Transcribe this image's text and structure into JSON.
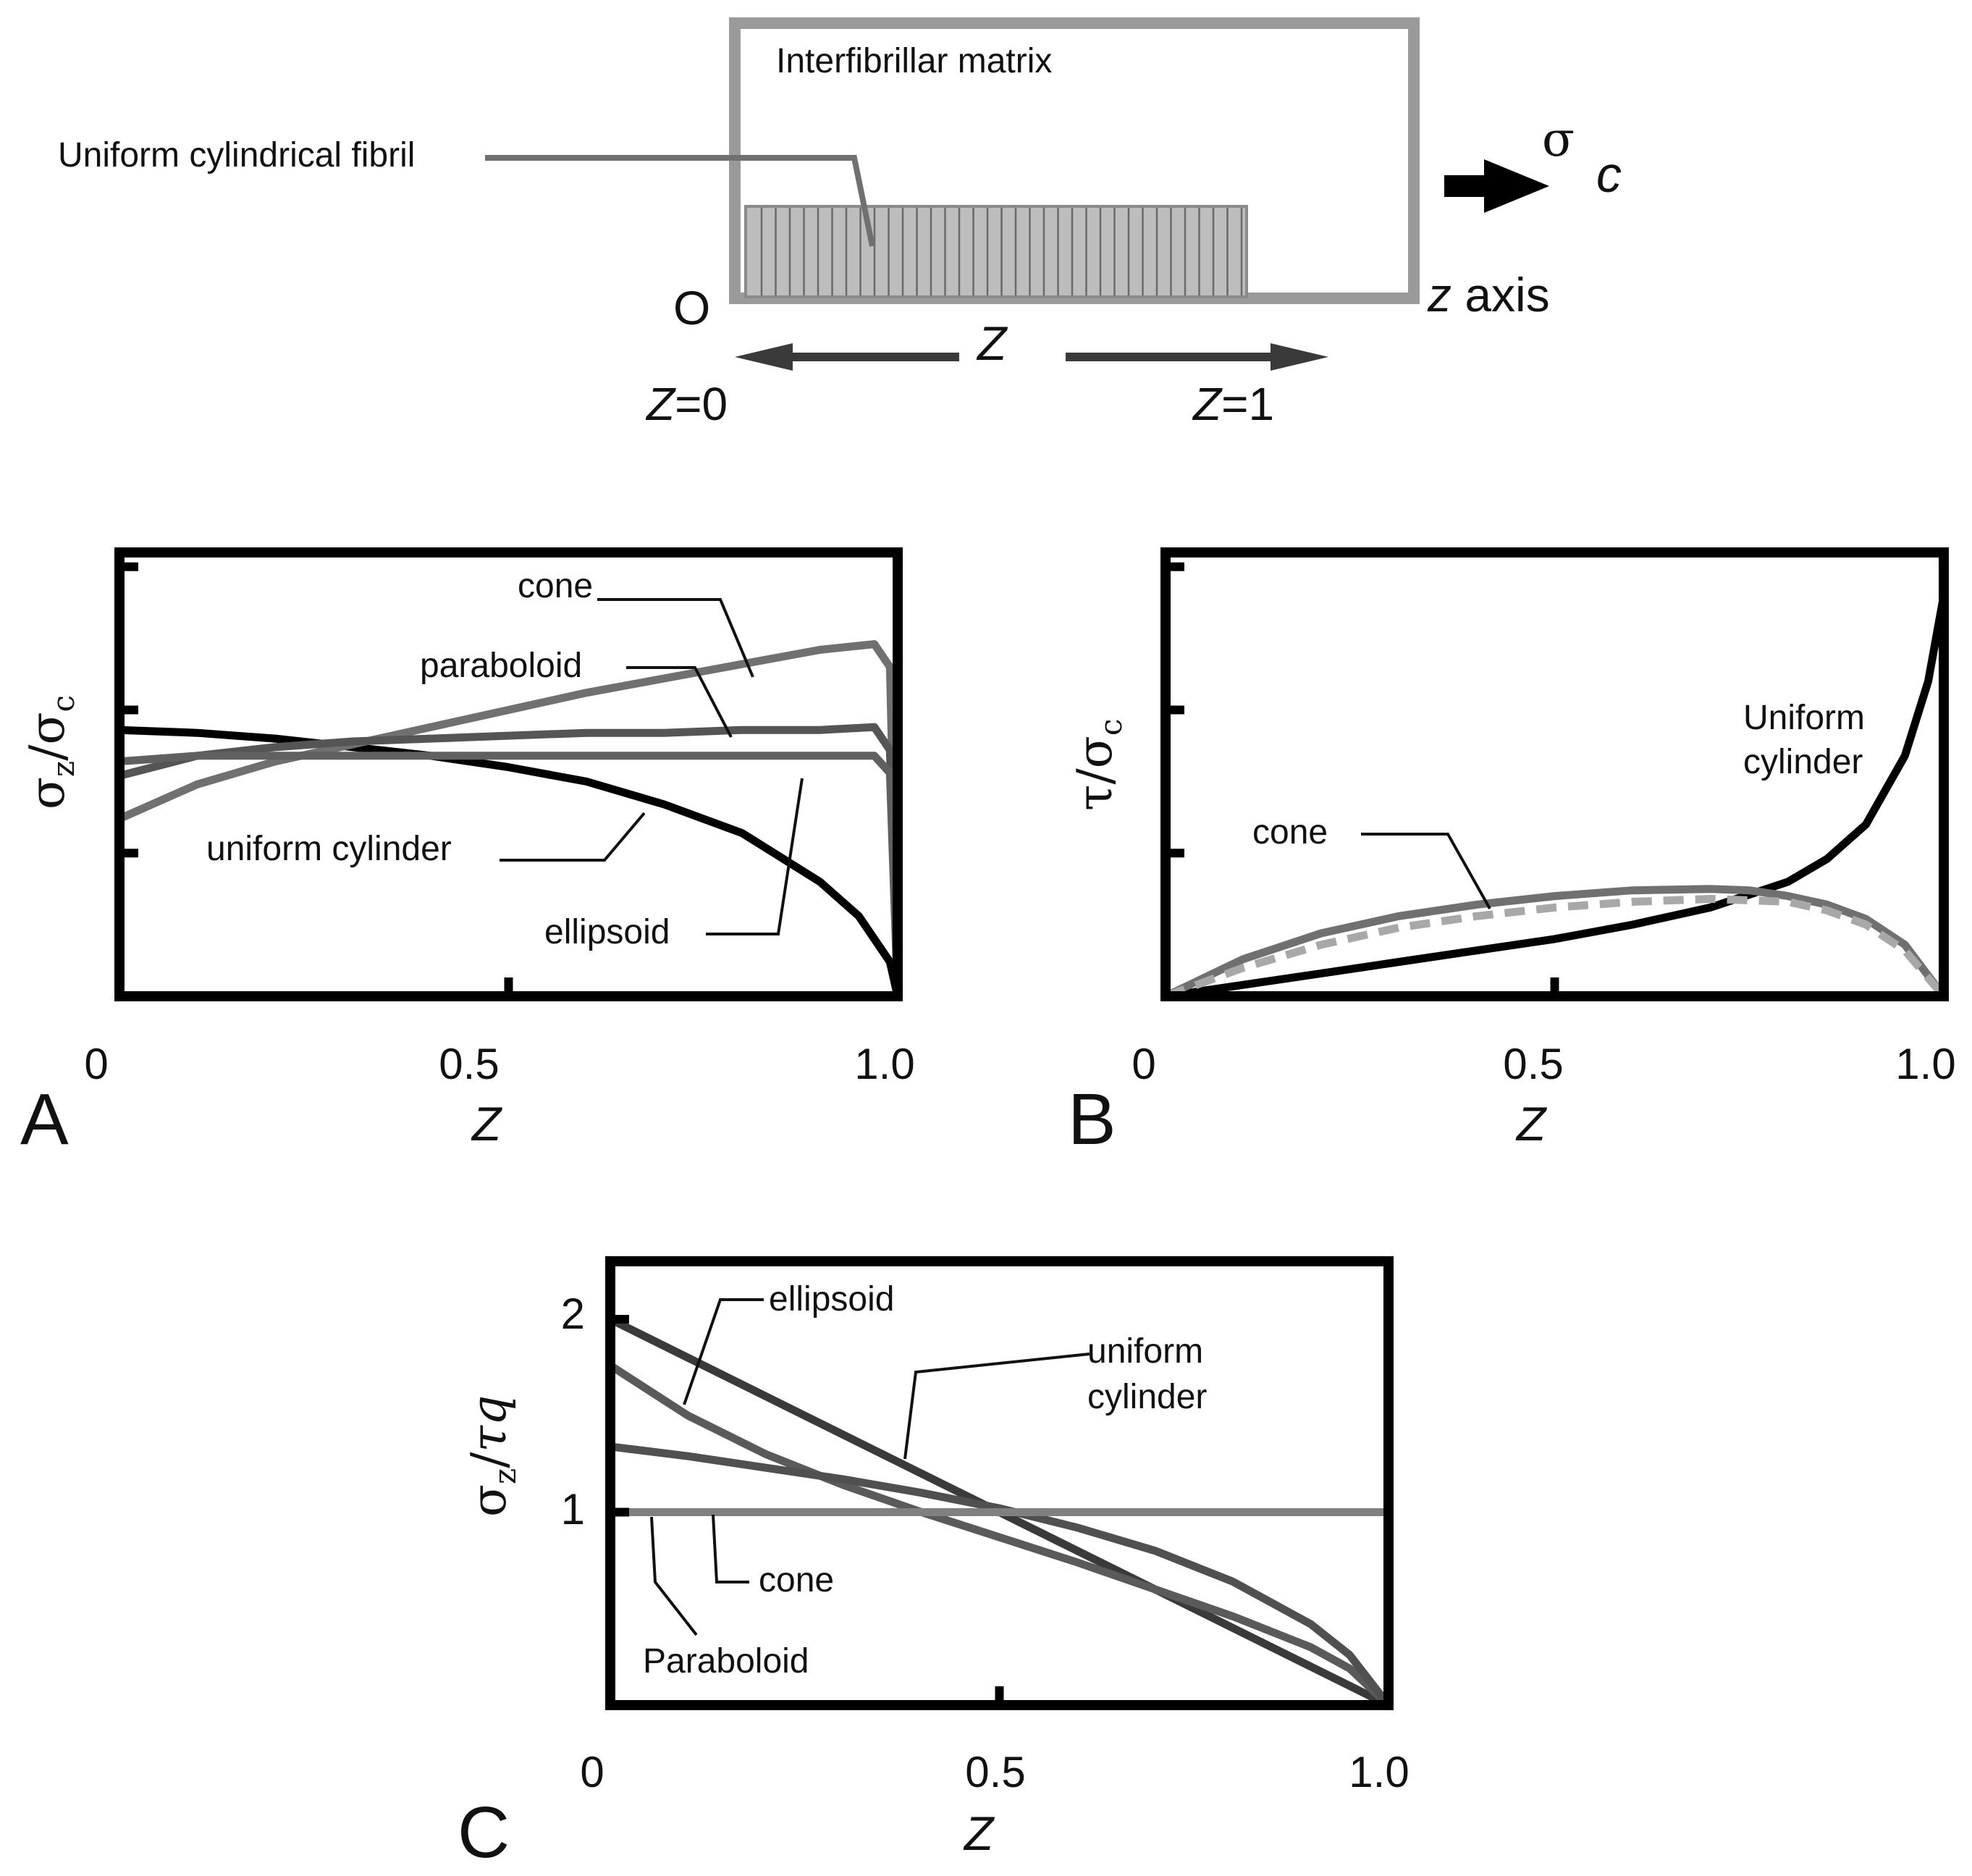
{
  "schematic": {
    "matrix_label": "Interfibrillar matrix",
    "fibril_label": "Uniform cylindrical fibril",
    "stress_symbol": "σ",
    "stress_sub": "c",
    "origin": "O",
    "z_axis_italic": "z",
    "z_axis_text": " axis",
    "Z_symbol": "Z",
    "Z0_var": "Z",
    "Z0_text": "=0",
    "Z1_var": "Z",
    "Z1_text": "=1",
    "colors": {
      "box": "#9a9a9a",
      "fibril": "#b9b9b9",
      "arrow": "#000000"
    }
  },
  "chart_data": [
    {
      "id": "A",
      "type": "line",
      "panel_label": "A",
      "xlabel": "Z",
      "ylabel_parts": {
        "num": "σ",
        "num_sub": "z",
        "slash": "/",
        "den": "σ",
        "den_sub": "c"
      },
      "xlim": [
        0,
        1
      ],
      "ylim": [
        0,
        1.55
      ],
      "xticks": [
        0,
        0.5,
        1.0
      ],
      "xtick_labels": [
        "0",
        "0.5",
        "1.0"
      ],
      "yticks": [
        0.5,
        1.0,
        1.5
      ],
      "grid": false,
      "legend": "inline labels",
      "series": [
        {
          "name": "uniform cylinder",
          "color": "#000000",
          "x": [
            0,
            0.1,
            0.2,
            0.3,
            0.4,
            0.5,
            0.6,
            0.7,
            0.8,
            0.9,
            0.95,
            0.99,
            1.0
          ],
          "y": [
            0.93,
            0.92,
            0.9,
            0.87,
            0.84,
            0.8,
            0.75,
            0.67,
            0.57,
            0.4,
            0.28,
            0.12,
            0
          ]
        },
        {
          "name": "cone",
          "color": "#707070",
          "x": [
            0,
            0.1,
            0.2,
            0.3,
            0.4,
            0.5,
            0.6,
            0.7,
            0.8,
            0.9,
            0.97,
            0.99,
            1.0
          ],
          "y": [
            0.62,
            0.74,
            0.82,
            0.88,
            0.94,
            1.0,
            1.06,
            1.11,
            1.16,
            1.21,
            1.23,
            1.15,
            0
          ]
        },
        {
          "name": "paraboloid",
          "color": "#555555",
          "x": [
            0,
            0.1,
            0.2,
            0.3,
            0.4,
            0.5,
            0.6,
            0.7,
            0.8,
            0.9,
            0.97,
            0.99,
            1.0
          ],
          "y": [
            0.77,
            0.84,
            0.87,
            0.89,
            0.9,
            0.91,
            0.92,
            0.92,
            0.93,
            0.93,
            0.94,
            0.86,
            0
          ]
        },
        {
          "name": "ellipsoid",
          "color": "#606060",
          "x": [
            0,
            0.1,
            0.2,
            0.3,
            0.5,
            0.7,
            0.9,
            0.97,
            0.99,
            1.0
          ],
          "y": [
            0.82,
            0.84,
            0.84,
            0.84,
            0.84,
            0.84,
            0.84,
            0.84,
            0.78,
            0
          ]
        }
      ],
      "annotations": [
        "cone",
        "paraboloid",
        "uniform cylinder",
        "ellipsoid"
      ]
    },
    {
      "id": "B",
      "type": "line",
      "panel_label": "B",
      "xlabel": "Z",
      "ylabel_parts": {
        "num": "τ",
        "slash": "/",
        "den": "σ",
        "den_sub": "c"
      },
      "xlim": [
        0,
        1
      ],
      "ylim": [
        0,
        1.55
      ],
      "xticks": [
        0,
        0.5,
        1.0
      ],
      "xtick_labels": [
        "0",
        "0.5",
        "1.0"
      ],
      "yticks": [
        0.5,
        1.0,
        1.5
      ],
      "grid": false,
      "legend": "inline labels",
      "series": [
        {
          "name": "Uniform cylinder",
          "color": "#000000",
          "x": [
            0,
            0.1,
            0.2,
            0.3,
            0.4,
            0.5,
            0.6,
            0.7,
            0.8,
            0.85,
            0.9,
            0.95,
            0.98,
            1.0
          ],
          "y": [
            0,
            0.04,
            0.08,
            0.12,
            0.16,
            0.2,
            0.25,
            0.31,
            0.4,
            0.48,
            0.6,
            0.84,
            1.1,
            1.4
          ]
        },
        {
          "name": "cone",
          "color": "#707070",
          "x": [
            0,
            0.1,
            0.2,
            0.3,
            0.4,
            0.5,
            0.6,
            0.7,
            0.75,
            0.8,
            0.85,
            0.9,
            0.95,
            1.0
          ],
          "y": [
            0,
            0.13,
            0.22,
            0.28,
            0.32,
            0.35,
            0.37,
            0.375,
            0.37,
            0.35,
            0.32,
            0.27,
            0.18,
            0
          ]
        },
        {
          "name": "",
          "color": "#a8a8a8",
          "dashed": true,
          "x": [
            0,
            0.1,
            0.2,
            0.3,
            0.4,
            0.5,
            0.6,
            0.7,
            0.8,
            0.85,
            0.9,
            0.95,
            1.0
          ],
          "y": [
            0,
            0.1,
            0.18,
            0.24,
            0.28,
            0.31,
            0.33,
            0.34,
            0.33,
            0.3,
            0.25,
            0.16,
            0
          ]
        }
      ],
      "annotations": [
        "Uniform",
        "cylinder",
        "cone"
      ]
    },
    {
      "id": "C",
      "type": "line",
      "panel_label": "C",
      "xlabel": "Z",
      "ylabel_parts": {
        "num": "σ",
        "num_sub": "z",
        "slash": "/",
        "den": "τq"
      },
      "xlim": [
        0,
        1
      ],
      "ylim": [
        0,
        2.3
      ],
      "xticks": [
        0,
        0.5,
        1.0
      ],
      "xtick_labels": [
        "0",
        "0.5",
        "1.0"
      ],
      "yticks": [
        1,
        2
      ],
      "ytick_labels": [
        "1",
        "2"
      ],
      "grid": false,
      "legend": "inline labels",
      "series": [
        {
          "name": "uniform cylinder",
          "color": "#3a3a3a",
          "x": [
            0,
            1.0
          ],
          "y": [
            2.0,
            0
          ]
        },
        {
          "name": "ellipsoid",
          "color": "#5a5a5a",
          "x": [
            0,
            0.1,
            0.2,
            0.3,
            0.4,
            0.5,
            0.6,
            0.7,
            0.8,
            0.9,
            0.95,
            1.0
          ],
          "y": [
            1.76,
            1.5,
            1.3,
            1.14,
            1.0,
            0.87,
            0.74,
            0.6,
            0.46,
            0.3,
            0.19,
            0
          ]
        },
        {
          "name": "cone",
          "color": "#505050",
          "x": [
            0,
            0.1,
            0.2,
            0.3,
            0.4,
            0.5,
            0.6,
            0.7,
            0.8,
            0.9,
            0.95,
            1.0
          ],
          "y": [
            1.34,
            1.29,
            1.23,
            1.17,
            1.1,
            1.02,
            0.92,
            0.8,
            0.64,
            0.42,
            0.26,
            0
          ]
        },
        {
          "name": "Paraboloid",
          "color": "#808080",
          "x": [
            0,
            1.0
          ],
          "y": [
            1.0,
            1.0
          ]
        }
      ],
      "annotations": [
        "ellipsoid",
        "uniform",
        "cylinder",
        "cone",
        "Paraboloid"
      ]
    }
  ]
}
